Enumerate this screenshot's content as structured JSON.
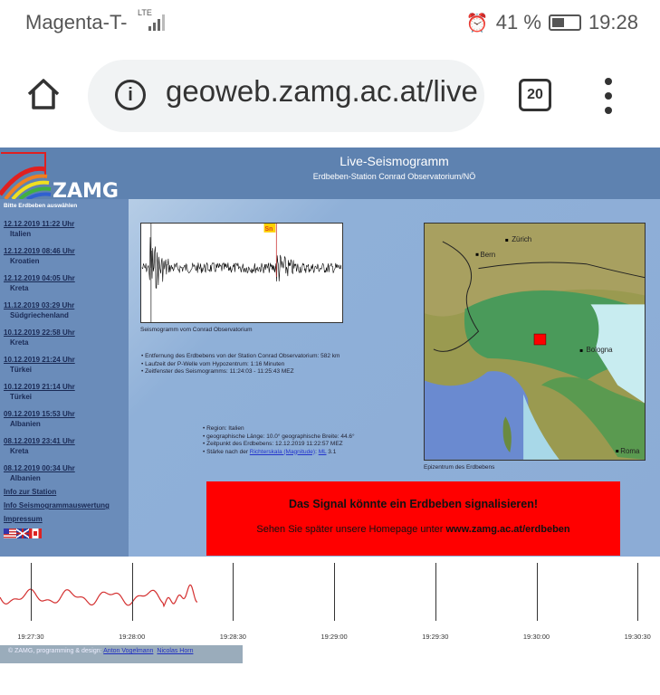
{
  "status_bar": {
    "carrier": "Magenta-T-",
    "network": "LTE",
    "battery": "41 %",
    "battery_level": 0.41,
    "time": "19:28"
  },
  "browser": {
    "url": "geoweb.zamg.ac.at/live",
    "tab_count": "20"
  },
  "header": {
    "logo_text": "ZAMG",
    "title": "Live-Seismogramm",
    "subtitle": "Erdbeben-Station Conrad Observatorium/NÖ"
  },
  "sidebar": {
    "hint": "Bitte Erdbeben auswählen",
    "earthquakes": [
      {
        "date": "12.12.2019  11:22 Uhr",
        "region": "Italien"
      },
      {
        "date": "12.12.2019  08:46 Uhr",
        "region": "Kroatien"
      },
      {
        "date": "12.12.2019  04:05 Uhr",
        "region": "Kreta"
      },
      {
        "date": "11.12.2019  03:29 Uhr",
        "region": "Südgriechenland"
      },
      {
        "date": "10.12.2019  22:58 Uhr",
        "region": "Kreta"
      },
      {
        "date": "10.12.2019  21:24 Uhr",
        "region": "Türkei"
      },
      {
        "date": "10.12.2019  21:14 Uhr",
        "region": "Türkei"
      },
      {
        "date": "09.12.2019  15:53 Uhr",
        "region": "Albanien"
      },
      {
        "date": "08.12.2019  23:41 Uhr",
        "region": "Kreta"
      },
      {
        "date": "08.12.2019  00:34 Uhr",
        "region": "Albanien"
      }
    ],
    "links": [
      "Info zur Station",
      "Info Seismogrammauswertung",
      "Impressum"
    ]
  },
  "seismogram": {
    "phase_label": "Sn",
    "caption": "Seismogramm vom Conrad Observatorium",
    "info": [
      "Entfernung des Erdbebens von der Station Conrad Observatorium: 582 km",
      "Laufzeit der P-Welle vom Hypozentrum: 1:16 Minuten",
      "Zeitfenster des Seismogramms: 11:24:03 - 11:25:43 MEZ"
    ]
  },
  "event": {
    "region": "Region: Italien",
    "coords": "geographische Länge: 10.0° geographische Breite: 44.6°",
    "time": "Zeitpunkt des Erdbebens: 12.12.2019 11:22:57 MEZ",
    "magnitude_prefix": "Stärke nach der ",
    "magnitude_link": "Richterskala (Magnitude)",
    "magnitude_sep": ": ",
    "magnitude_type": "ML",
    "magnitude_value": " 3.1"
  },
  "map": {
    "caption": "Epizentrum des Erdbebens",
    "cities": [
      "Bern",
      "Zürich",
      "Bologna",
      "Roma"
    ]
  },
  "alert": {
    "headline": "Das Signal könnte ein Erdbeben signalisieren!",
    "text_prefix": "Sehen Sie später unsere Homepage unter ",
    "link": "www.zamg.ac.at/erdbeben",
    "color": "#ff0000"
  },
  "live": {
    "times": [
      "19:27:30",
      "19:28:00",
      "19:28:30",
      "19:29:00",
      "19:29:30",
      "19:30:00",
      "19:30:30"
    ]
  },
  "footer": {
    "text": "© ZAMG, programming & design: ",
    "author1": "Anton Vogelmann",
    "author2": "Nicolas Horn"
  }
}
